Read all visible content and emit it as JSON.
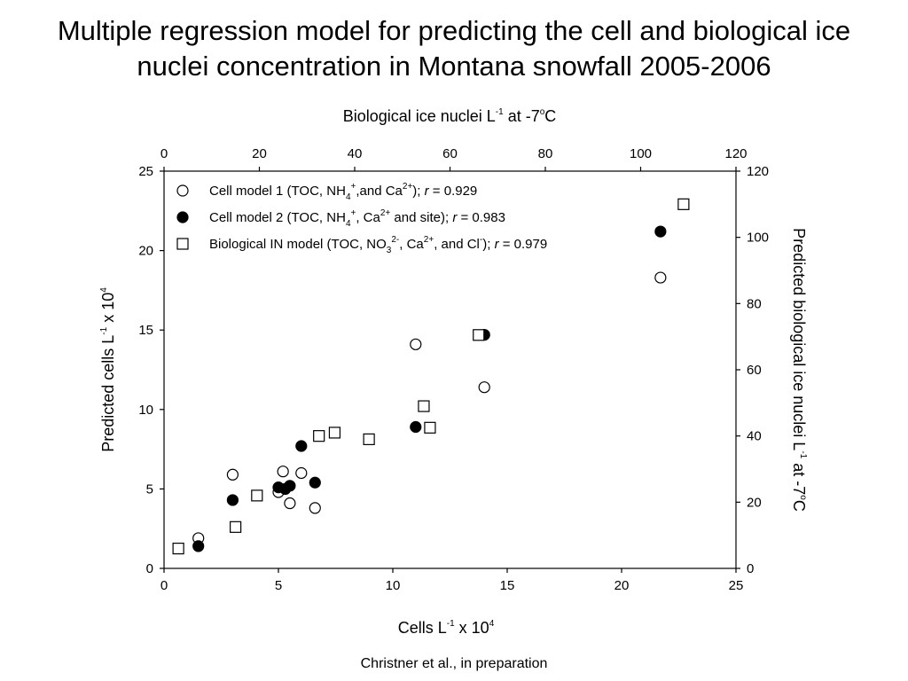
{
  "title": {
    "line1": "Multiple regression model for predicting the cell and biological ice",
    "line2": "nuclei concentration in Montana snowfall 2005-2006"
  },
  "credit": "Christner et al., in preparation",
  "chart_data": {
    "type": "scatter",
    "title": "Multiple regression model for predicting the cell and biological ice nuclei concentration in Montana snowfall 2005-2006",
    "xlabel": "Cells L-1 x 10^4",
    "ylabel": "Predicted cells L-1 x 10^4",
    "x2label": "Biological ice nuclei L-1 at -7oC",
    "y2label": "Predicted biological ice nuclei L-1 at -7oC",
    "xlim": [
      0,
      25
    ],
    "ylim": [
      0,
      25
    ],
    "x2lim": [
      0,
      120
    ],
    "y2lim": [
      0,
      120
    ],
    "xticks": [
      0,
      5,
      10,
      15,
      20,
      25
    ],
    "yticks": [
      0,
      5,
      10,
      15,
      20,
      25
    ],
    "x2ticks": [
      0,
      20,
      40,
      60,
      80,
      100,
      120
    ],
    "y2ticks": [
      0,
      20,
      40,
      60,
      80,
      100,
      120
    ],
    "grid": false,
    "legend_position": "top-left",
    "series": [
      {
        "name": "Cell model 1 (TOC, NH4+,and Ca2+); r = 0.929",
        "marker": "open-circle",
        "axes": "bottom-left",
        "points": [
          [
            1.5,
            1.9
          ],
          [
            3.0,
            5.9
          ],
          [
            5.0,
            4.8
          ],
          [
            5.2,
            6.1
          ],
          [
            5.5,
            4.1
          ],
          [
            6.0,
            6.0
          ],
          [
            6.6,
            3.8
          ],
          [
            11.0,
            14.1
          ],
          [
            14.0,
            11.4
          ],
          [
            21.7,
            18.3
          ]
        ]
      },
      {
        "name": "Cell model 2 (TOC, NH4+, Ca2+ and site); r = 0.983",
        "marker": "filled-circle",
        "axes": "bottom-left",
        "points": [
          [
            1.5,
            1.4
          ],
          [
            3.0,
            4.3
          ],
          [
            5.0,
            5.1
          ],
          [
            5.3,
            5.0
          ],
          [
            5.5,
            5.2
          ],
          [
            6.0,
            7.7
          ],
          [
            6.6,
            5.4
          ],
          [
            11.0,
            8.9
          ],
          [
            14.0,
            14.7
          ],
          [
            21.7,
            21.2
          ]
        ]
      },
      {
        "name": "Biological IN model (TOC, NO32-, Ca2+, and Cl-); r = 0.979",
        "marker": "open-square",
        "axes": "top-right",
        "points": [
          [
            3,
            6
          ],
          [
            15,
            12.5
          ],
          [
            19.5,
            22
          ],
          [
            32.5,
            40
          ],
          [
            35.8,
            41
          ],
          [
            43,
            39
          ],
          [
            54.5,
            49
          ],
          [
            55.8,
            42.5
          ],
          [
            66,
            70.5
          ],
          [
            109,
            110
          ]
        ]
      }
    ],
    "legend": [
      {
        "text": "Cell model 1 (TOC, NH",
        "sub": "4",
        "sup": "+",
        "rest": ",and Ca",
        "sup2": "2+",
        "tail": "); ",
        "r": "r",
        "val": " = 0.929"
      },
      {
        "text": "Cell model 2 (TOC, NH",
        "sub": "4",
        "sup": "+",
        "rest": ", Ca",
        "sup2": "2+",
        "tail": " and site); ",
        "r": "r",
        "val": " = 0.983"
      },
      {
        "text": "Biological IN model (TOC, NO",
        "sub": "3",
        "sup": "2-",
        "rest": ", Ca",
        "sup2": "2+",
        "tail": ", and Cl",
        "sup3": "-",
        "tail2": "); ",
        "r": "r",
        "val": " = 0.979"
      }
    ],
    "axis_text": {
      "top_main": "Biological ice nuclei L",
      "top_sup": "-1",
      "top_mid": " at -7",
      "top_sup2": "o",
      "top_end": "C",
      "bottom_main": "Cells L",
      "bottom_sup": "-1",
      "bottom_mid": " x 10",
      "bottom_sup2": "4",
      "left_main": "Predicted cells L",
      "left_sup": "-1",
      "left_mid": " x 10",
      "left_sup2": "4",
      "right_main": "Predicted biological ice nuclei L",
      "right_sup": "-1",
      "right_mid": "  at -7",
      "right_sup2": "o",
      "right_end": "C"
    }
  }
}
